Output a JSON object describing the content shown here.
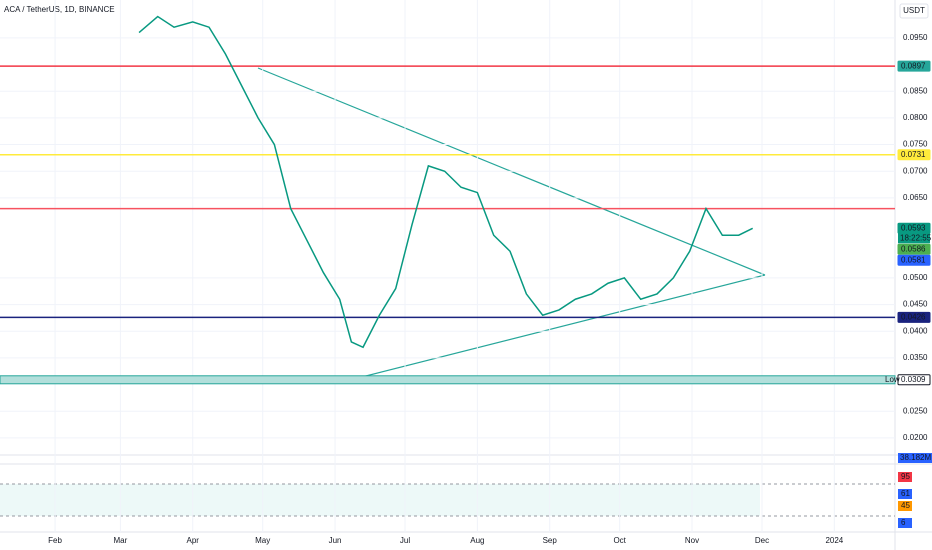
{
  "header": {
    "symbol": "ACA / TetherUS, 1D, BINANCE",
    "currency": "USDT"
  },
  "chart_data": {
    "type": "line",
    "color": "#089981",
    "x": [
      67,
      75,
      82,
      90,
      97,
      104,
      111,
      118,
      125,
      132,
      139,
      146,
      153,
      158,
      163,
      170,
      177,
      184,
      191,
      198,
      205,
      212,
      219,
      226,
      233,
      240,
      247,
      254,
      261,
      268,
      275,
      282,
      289,
      296,
      303,
      310,
      317,
      324,
      330
    ],
    "values": [
      0.096,
      0.099,
      0.097,
      0.098,
      0.097,
      0.092,
      0.086,
      0.08,
      0.075,
      0.063,
      0.057,
      0.051,
      0.046,
      0.038,
      0.037,
      0.043,
      0.048,
      0.06,
      0.071,
      0.07,
      0.067,
      0.066,
      0.058,
      0.055,
      0.047,
      0.043,
      0.044,
      0.046,
      0.047,
      0.049,
      0.05,
      0.046,
      0.047,
      0.05,
      0.055,
      0.063,
      0.058,
      0.058,
      0.0593
    ],
    "xlim": [
      7.4,
      391
    ],
    "ylim": [
      0.0168,
      0.1021
    ],
    "xticks": [
      {
        "value": 31,
        "label": "Feb"
      },
      {
        "value": 59,
        "label": "Mar"
      },
      {
        "value": 90,
        "label": "Apr"
      },
      {
        "value": 120,
        "label": "May"
      },
      {
        "value": 151,
        "label": "Jun"
      },
      {
        "value": 181,
        "label": "Jul"
      },
      {
        "value": 212,
        "label": "Aug"
      },
      {
        "value": 243,
        "label": "Sep"
      },
      {
        "value": 273,
        "label": "Oct"
      },
      {
        "value": 304,
        "label": "Nov"
      },
      {
        "value": 334,
        "label": "Dec"
      },
      {
        "value": 365,
        "label": "2024"
      }
    ],
    "yticks": [
      {
        "value": 0.095,
        "label": "0.0950"
      },
      {
        "value": 0.085,
        "label": "0.0850"
      },
      {
        "value": 0.08,
        "label": "0.0800"
      },
      {
        "value": 0.075,
        "label": "0.0750"
      },
      {
        "value": 0.07,
        "label": "0.0700"
      },
      {
        "value": 0.065,
        "label": "0.0650"
      },
      {
        "value": 0.05,
        "label": "0.0500"
      },
      {
        "value": 0.045,
        "label": "0.0450"
      },
      {
        "value": 0.04,
        "label": "0.0400"
      },
      {
        "value": 0.035,
        "label": "0.0350"
      },
      {
        "value": 0.025,
        "label": "0.0250"
      },
      {
        "value": 0.02,
        "label": "0.0200"
      }
    ],
    "grid": true,
    "levels": [
      {
        "value": 0.0897,
        "color": "#f23645"
      },
      {
        "value": 0.0731,
        "color": "#ffeb3b"
      },
      {
        "value": 0.063,
        "color": "#f7525f"
      },
      {
        "value": 0.0426,
        "color": "#1a237e"
      },
      {
        "value": 0.0309,
        "color": "#26a69a"
      }
    ],
    "price_labels": [
      {
        "value": 0.0897,
        "label": "0.0897",
        "color": "#26a69a"
      },
      {
        "value": 0.0731,
        "label": "0.0731",
        "color": "#ffeb3b"
      },
      {
        "value": 0.0593,
        "label": "0.0593",
        "color": "#089981"
      },
      {
        "value": 0.0586,
        "label": "0.0586",
        "color": "#4caf50"
      },
      {
        "value": 0.0581,
        "label": "0.0581",
        "color": "#2962ff"
      },
      {
        "value": 0.0426,
        "label": "0.0426",
        "color": "#1a237e"
      },
      {
        "value": 0.0309,
        "label": "0.0309",
        "color": "#ffffff"
      }
    ],
    "countdown": "18:22:55",
    "low_label": "Low"
  },
  "volume": {
    "label": "38.182M"
  },
  "oscillator": {
    "labels": [
      {
        "text": "95",
        "color": "#f23645"
      },
      {
        "text": "61",
        "color": "#2962ff"
      },
      {
        "text": "45",
        "color": "#ff9800"
      },
      {
        "text": "6",
        "color": "#2962ff"
      }
    ]
  }
}
